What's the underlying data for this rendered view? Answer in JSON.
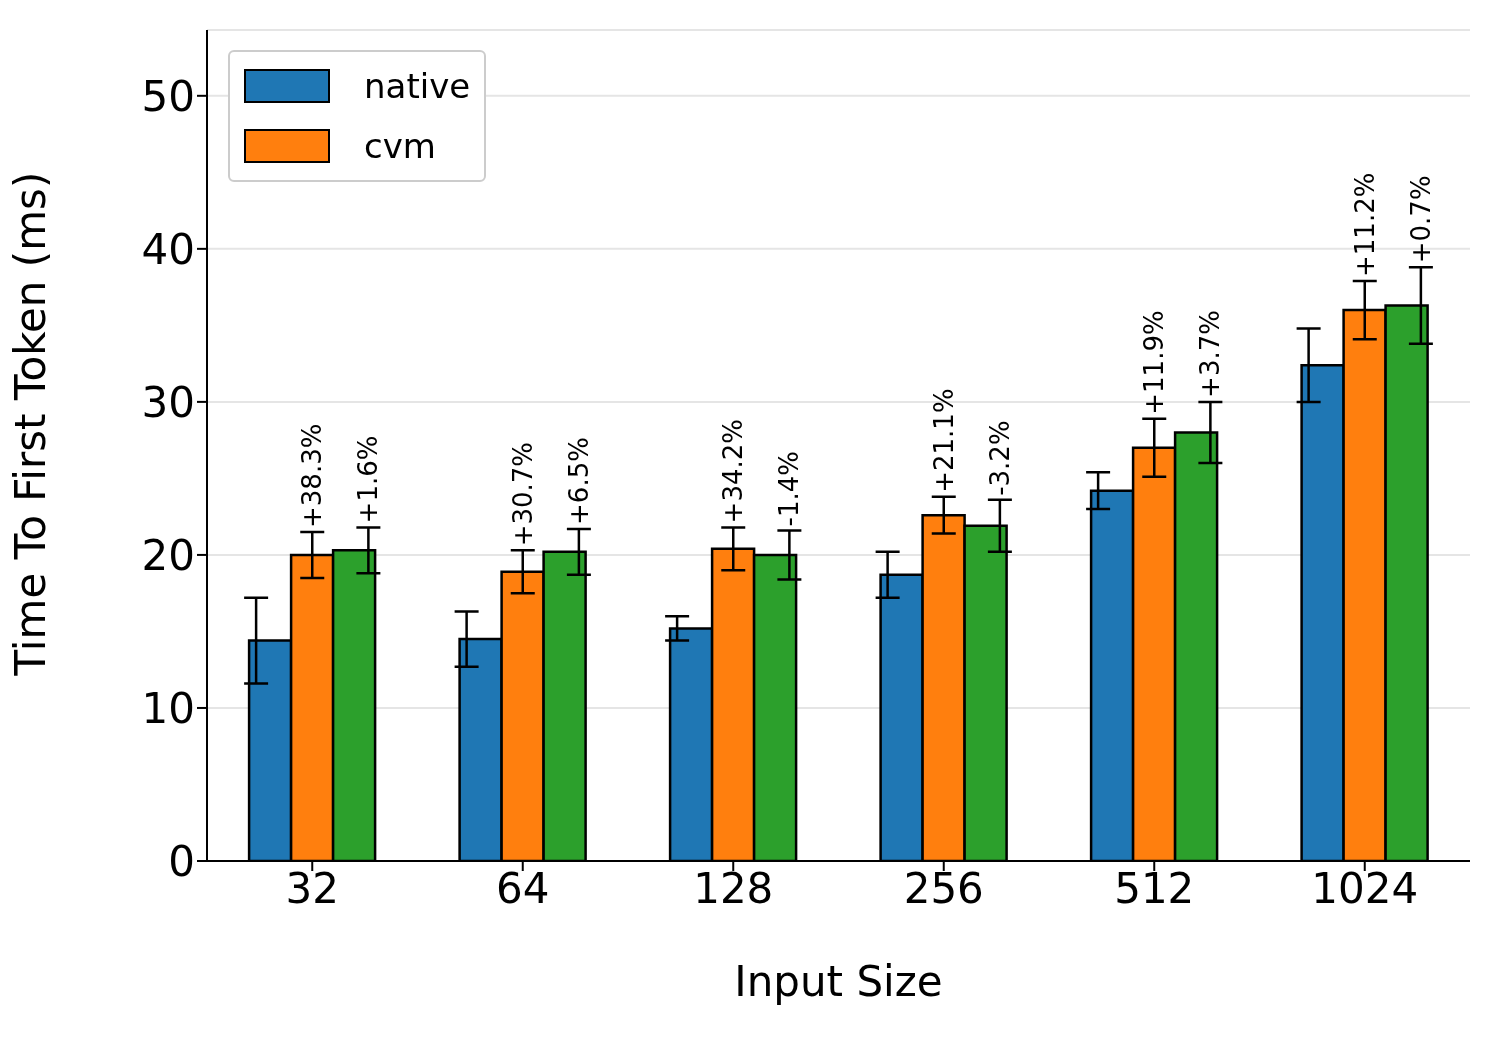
{
  "chart_data": {
    "type": "bar",
    "xlabel": "Input Size",
    "ylabel": "Time To First Token (ms)",
    "categories": [
      "32",
      "64",
      "128",
      "256",
      "512",
      "1024"
    ],
    "series": [
      {
        "name": "native",
        "color": "#1f77b4",
        "values": [
          14.4,
          14.5,
          15.2,
          18.7,
          24.2,
          32.4
        ],
        "errors": [
          2.8,
          1.8,
          0.8,
          1.5,
          1.2,
          2.4
        ]
      },
      {
        "name": "cvm",
        "color": "#ff7f0e",
        "values": [
          20.0,
          18.9,
          20.4,
          22.6,
          27.0,
          36.0
        ],
        "errors": [
          1.5,
          1.4,
          1.4,
          1.2,
          1.9,
          1.9
        ]
      },
      {
        "color": "#2ca02c",
        "values": [
          20.3,
          20.2,
          20.0,
          21.9,
          28.0,
          36.3
        ],
        "errors": [
          1.5,
          1.5,
          1.6,
          1.7,
          2.0,
          2.5
        ]
      }
    ],
    "annotations": [
      "+38.3%",
      "+30.7%",
      "+34.2%",
      "+21.1%",
      "+11.9%",
      "+11.2%",
      "+1.6%",
      "+6.5%",
      "-1.4%",
      "-3.2%",
      "+3.7%",
      "+0.7%"
    ],
    "ylim": [
      0,
      54.3
    ],
    "yticks": [
      0,
      10,
      20,
      30,
      40,
      50
    ],
    "grid": "y",
    "legend": "top left"
  }
}
